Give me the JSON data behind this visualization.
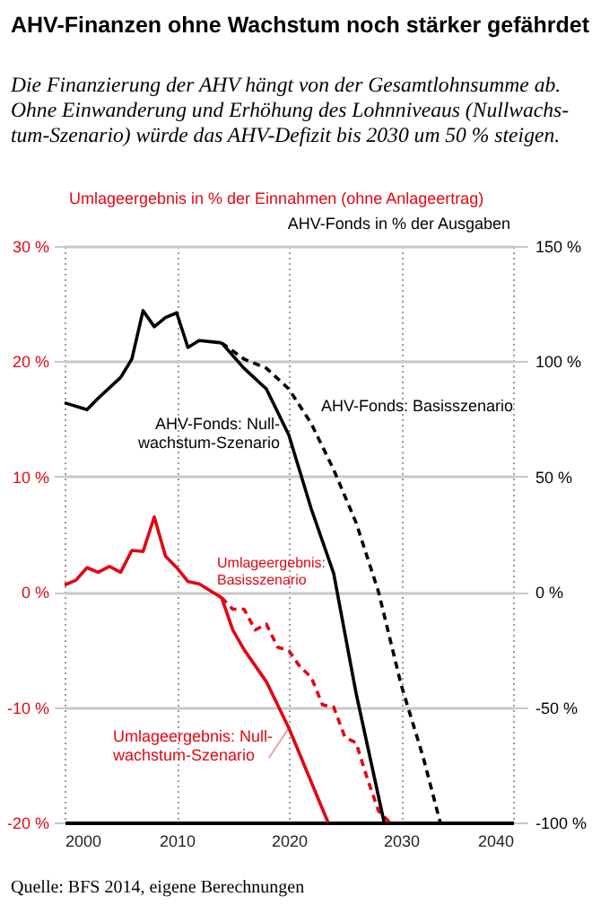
{
  "chart_data": {
    "type": "line",
    "title": "AHV-Finanzen ohne Wachstum noch stärker gefährdet",
    "subtitle": "Die Finanzierung der AHV hängt von der Gesamtlohnsumme ab.\nOhne Einwanderung und Erhöhung des Lohnniveaus (Nullwachs-\ntum-Szenario) würde das AHV-Defizit bis 2030 um 50 % steigen.",
    "ylabel": "Umlageergebnis in % der Einnahmen (ohne Anlageertrag)",
    "y2label": "AHV-Fonds in % der Ausgaben",
    "annotations": [
      "Quelle: BFS 2014, eigene Berechnungen"
    ],
    "xlim": [
      2000,
      2040
    ],
    "xticks": [
      2000,
      2010,
      2020,
      2030,
      2040
    ],
    "ylim": [
      -20,
      30
    ],
    "yticks": [
      {
        "value": -20,
        "label": "-20 %"
      },
      {
        "value": -10,
        "label": "-10 %"
      },
      {
        "value": 0,
        "label": "0 %"
      },
      {
        "value": 10,
        "label": "10 %"
      },
      {
        "value": 20,
        "label": "20 %"
      },
      {
        "value": 30,
        "label": "30 %"
      }
    ],
    "y2lim": [
      -100,
      150
    ],
    "y2ticks": [
      {
        "value": -100,
        "label": "-100 %"
      },
      {
        "value": -50,
        "label": "-50 %"
      },
      {
        "value": 0,
        "label": "0 %"
      },
      {
        "value": 50,
        "label": "50 %"
      },
      {
        "value": 100,
        "label": "100 %"
      },
      {
        "value": 150,
        "label": "150 %"
      }
    ],
    "grid": true,
    "series": [
      {
        "color": "#000000",
        "axis": "y2",
        "line_style": "solid",
        "x": [
          2000,
          2002,
          2003,
          2005,
          2006,
          2007,
          2008,
          2009,
          2010,
          2011,
          2012,
          2014
        ],
        "values": [
          82,
          79,
          84,
          93,
          101,
          122,
          115,
          119,
          121,
          106,
          109,
          108
        ]
      },
      {
        "name": "AHV-Fonds: Basisszenario",
        "color": "#000000",
        "axis": "y2",
        "line_style": "dashed",
        "x": [
          2014,
          2016,
          2018,
          2020,
          2022,
          2024,
          2026,
          2028,
          2030,
          2032,
          2033.5
        ],
        "values": [
          108,
          101,
          97,
          88,
          73,
          53,
          30,
          0,
          -40,
          -72,
          -100
        ]
      },
      {
        "name": "AHV-Fonds: Null-\nwachstum-Szenario",
        "color": "#000000",
        "axis": "y2",
        "line_style": "solid",
        "x": [
          2014,
          2016,
          2018,
          2020,
          2022,
          2024,
          2026,
          2028.5
        ],
        "values": [
          108,
          97,
          88,
          68,
          36,
          8,
          -44,
          -100
        ]
      },
      {
        "color": "#e30613",
        "line_style": "solid",
        "x": [
          2000,
          2001,
          2002,
          2003,
          2004,
          2005,
          2006,
          2007,
          2008,
          2009,
          2010,
          2011,
          2012,
          2013,
          2014
        ],
        "values": [
          0.6,
          1.0,
          2.1,
          1.7,
          2.2,
          1.7,
          3.6,
          3.5,
          6.5,
          3.1,
          2.1,
          0.9,
          0.7,
          0.1,
          -0.5
        ]
      },
      {
        "name": "Umlageergebnis:\nBasisszenario",
        "color": "#e30613",
        "line_style": "dashed",
        "x": [
          2014,
          2015,
          2016,
          2017,
          2018,
          2019,
          2020,
          2021,
          2022,
          2023,
          2024,
          2025,
          2026,
          2027,
          2028,
          2029
        ],
        "values": [
          -0.5,
          -1.5,
          -1.5,
          -3.3,
          -2.8,
          -4.8,
          -5.1,
          -6.5,
          -7.4,
          -9.8,
          -10,
          -12.6,
          -13.1,
          -16.2,
          -19,
          -20
        ]
      },
      {
        "name": "Umlageergebnis: Null-\nwachstum-Szenario",
        "color": "#e30613",
        "line_style": "solid",
        "x": [
          2014,
          2015,
          2016,
          2018,
          2020,
          2022,
          2023.5
        ],
        "values": [
          -0.5,
          -3.3,
          -5,
          -7.8,
          -11.8,
          -16.5,
          -20
        ]
      }
    ]
  }
}
